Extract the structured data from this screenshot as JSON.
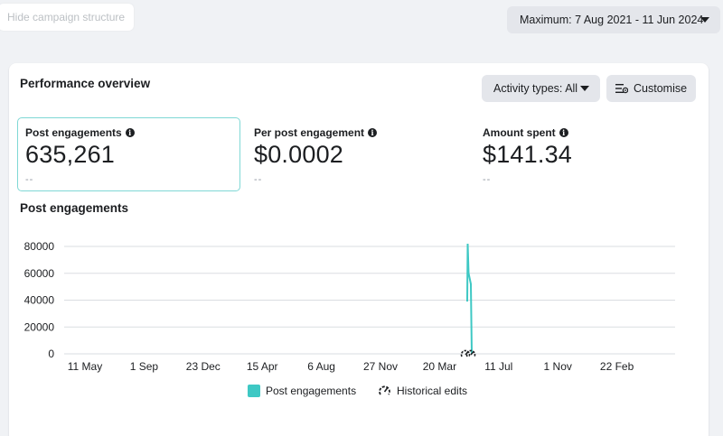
{
  "top_bar": {
    "hide_label": "Hide campaign structure",
    "date_range_label": "Maximum: 7 Aug 2021 - 11 Jun 2024"
  },
  "card": {
    "title": "Performance overview",
    "activity_label": "Activity types: All",
    "customise_label": "Customise"
  },
  "metrics": [
    {
      "label": "Post engagements",
      "value": "635,261",
      "sub": "--"
    },
    {
      "label": "Per post engagement",
      "value": "$0.0002",
      "sub": "--"
    },
    {
      "label": "Amount spent",
      "value": "$141.34",
      "sub": "--"
    }
  ],
  "chart_data": {
    "type": "line",
    "title": "Post engagements",
    "y_ticks": [
      "80000",
      "60000",
      "40000",
      "20000",
      "0"
    ],
    "ylim": [
      0,
      80000
    ],
    "x_ticks": [
      "11 May",
      "1 Sep",
      "23 Dec",
      "15 Apr",
      "6 Aug",
      "27 Nov",
      "20 Mar",
      "11 Jul",
      "1 Nov",
      "22 Feb"
    ],
    "grid": true,
    "series": [
      {
        "name": "Post engagements",
        "color": "#3ec8c4",
        "values": [
          {
            "x": "early Jun",
            "y": 39000
          },
          {
            "x": "early Jun",
            "y": 82000
          },
          {
            "x": "early Jun",
            "y": 60000
          },
          {
            "x": "mid Jun",
            "y": 52000
          },
          {
            "x": "mid Jun",
            "y": 0
          }
        ]
      }
    ],
    "legend": [
      {
        "label": "Post engagements",
        "icon": "teal-square"
      },
      {
        "label": "Historical edits",
        "icon": "gauge-icon"
      }
    ],
    "legend_position": "bottom"
  }
}
